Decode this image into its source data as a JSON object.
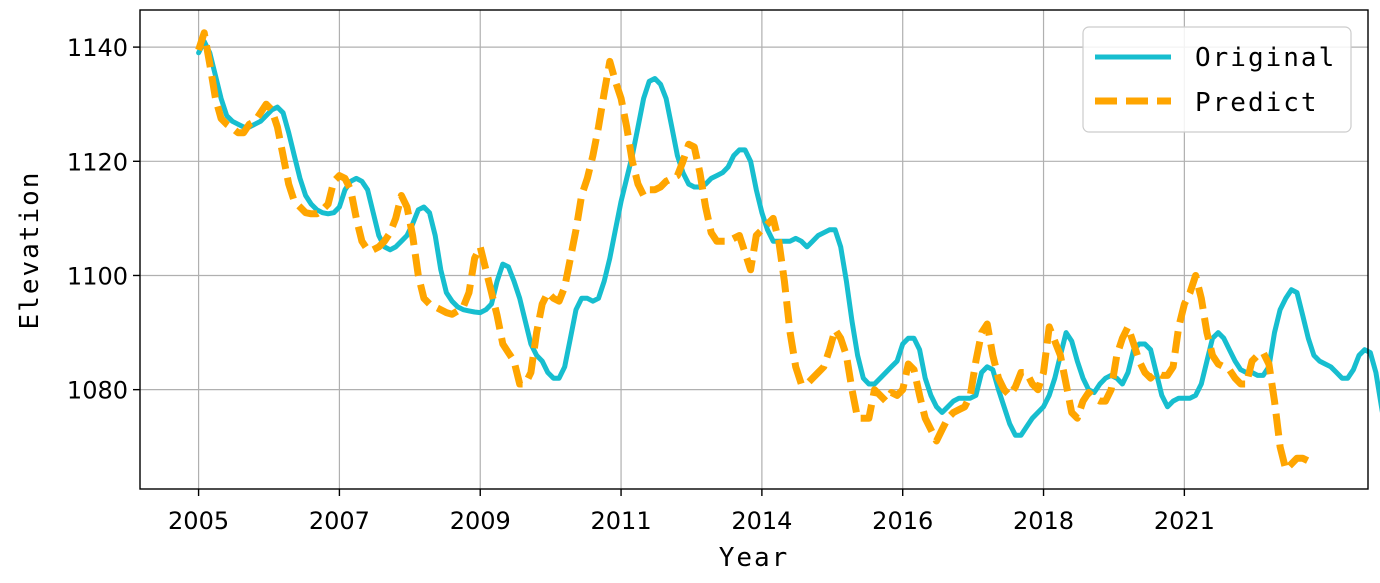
{
  "chart_data": {
    "type": "line",
    "title": "",
    "xlabel": "Year",
    "ylabel": "Elevation",
    "x_tick_labels": [
      "2005",
      "2007",
      "2009",
      "2011",
      "2014",
      "2016",
      "2018",
      "2021"
    ],
    "y_ticks": [
      1080,
      1100,
      1120,
      1140
    ],
    "xlim": [
      -10.4,
      207.6
    ],
    "ylim": [
      1062.6,
      1146.5
    ],
    "grid": true,
    "legend_position": "top-right",
    "series": [
      {
        "name": "Original",
        "color": "#17becf",
        "style": "solid",
        "values": [
          1139,
          1141,
          1139,
          1135,
          1131,
          1128,
          1127,
          1126.5,
          1126,
          1126,
          1126.5,
          1127,
          1128,
          1129,
          1129.5,
          1128.5,
          1125,
          1121,
          1117,
          1114,
          1112.5,
          1111.5,
          1111,
          1110.8,
          1111,
          1112,
          1115,
          1116.5,
          1117,
          1116.5,
          1115,
          1111,
          1107,
          1105,
          1104.5,
          1105,
          1106,
          1107,
          1109,
          1111.5,
          1112,
          1111,
          1107,
          1101,
          1097,
          1095.5,
          1094.5,
          1094,
          1093.8,
          1093.6,
          1093.5,
          1094,
          1095,
          1099,
          1102,
          1101.5,
          1099,
          1096,
          1092,
          1088,
          1086,
          1085,
          1083,
          1082,
          1082,
          1084,
          1089,
          1094,
          1096,
          1096,
          1095.5,
          1096,
          1099,
          1103,
          1108,
          1113,
          1117,
          1121,
          1126,
          1131,
          1134,
          1134.5,
          1133.5,
          1131,
          1126,
          1121,
          1118,
          1116,
          1115.5,
          1115.5,
          1116,
          1117,
          1117.5,
          1118,
          1119,
          1121,
          1122,
          1122,
          1120,
          1115,
          1111,
          1108,
          1106,
          1106,
          1106,
          1106,
          1106.5,
          1106,
          1105,
          1106,
          1107,
          1107.5,
          1108,
          1108,
          1105,
          1099,
          1092,
          1086,
          1082,
          1081,
          1081,
          1082,
          1083,
          1084,
          1085,
          1088,
          1089,
          1089,
          1087,
          1082,
          1079,
          1077,
          1076,
          1077,
          1078,
          1078.5,
          1078.5,
          1078.5,
          1079,
          1083,
          1084,
          1083.5,
          1080,
          1077,
          1074,
          1072,
          1072,
          1073.5,
          1075,
          1076,
          1077,
          1079,
          1082,
          1086,
          1090,
          1088.5,
          1085,
          1082,
          1080,
          1079.5,
          1081,
          1082,
          1082.5,
          1082,
          1081,
          1083,
          1087,
          1088,
          1088,
          1087,
          1083,
          1079,
          1077,
          1078,
          1078.5,
          1078.5,
          1078.5,
          1079,
          1081,
          1085,
          1089,
          1090,
          1089,
          1087,
          1085,
          1083.5,
          1083,
          1083,
          1082.5,
          1082.5,
          1084,
          1090,
          1094,
          1096,
          1097.5,
          1097,
          1093,
          1089,
          1086,
          1085,
          1084.5,
          1084,
          1083,
          1082,
          1082,
          1083.5,
          1086,
          1087,
          1086.5,
          1083,
          1077,
          1071,
          1068,
          1067.5,
          1068,
          1067.8,
          1067.5
        ]
      },
      {
        "name": "Predict",
        "color": "#ffa500",
        "style": "dashed",
        "values": [
          1139.5,
          1142.5,
          1137,
          1131,
          1127.5,
          1126.5,
          1125.8,
          1125,
          1125,
          1126.5,
          1127,
          1128.5,
          1130,
          1129,
          1126,
          1121,
          1116,
          1113,
          1112,
          1111,
          1110.8,
          1110.8,
          1111.5,
          1112.5,
          1116.5,
          1117.5,
          1117,
          1115,
          1110,
          1106,
          1104.5,
          1104.5,
          1105,
          1106,
          1107.5,
          1110,
          1114,
          1112,
          1107,
          1100,
          1096,
          1095,
          1094.5,
          1094,
          1093.5,
          1093.2,
          1093.8,
          1094.5,
          1097,
          1103,
          1105,
          1101,
          1097,
          1093,
          1088,
          1086.5,
          1085,
          1081,
          1081,
          1083,
          1090,
          1095,
          1097,
          1096,
          1095.5,
          1098,
          1103,
          1108,
          1114,
          1117,
          1121,
          1126,
          1132,
          1137.5,
          1134,
          1131,
          1126,
          1120,
          1116,
          1114,
          1115,
          1115,
          1115.5,
          1116.5,
          1117,
          1117.5,
          1120,
          1123,
          1122.5,
          1118,
          1112,
          1107.5,
          1106,
          1106,
          1106,
          1106.5,
          1107,
          1104,
          1101,
          1107,
          1108,
          1109,
          1110,
          1106,
          1099,
          1090,
          1084,
          1081,
          1081,
          1082,
          1083,
          1084,
          1087,
          1090.5,
          1089,
          1086,
          1080,
          1075,
          1075,
          1075,
          1080,
          1079,
          1078,
          1079.5,
          1079,
          1080,
          1084.5,
          1083.5,
          1079,
          1075,
          1073,
          1071,
          1073,
          1075,
          1076,
          1076.5,
          1077,
          1079,
          1085,
          1090,
          1091.5,
          1086,
          1082,
          1080,
          1079,
          1080.5,
          1083,
          1083,
          1081,
          1080,
          1083,
          1091,
          1088.5,
          1086,
          1081,
          1076,
          1075,
          1078,
          1079.5,
          1078.5,
          1078,
          1078,
          1080,
          1086,
          1089,
          1091,
          1088,
          1085,
          1083,
          1082,
          1083,
          1082.5,
          1082.5,
          1084,
          1091,
          1095,
          1097,
          1100,
          1096,
          1090,
          1086,
          1084.5,
          1084,
          1083.5,
          1082,
          1081,
          1081,
          1085,
          1086,
          1086.5,
          1084.5,
          1078,
          1070,
          1066,
          1067,
          1068,
          1068,
          1067.5
        ]
      }
    ]
  }
}
